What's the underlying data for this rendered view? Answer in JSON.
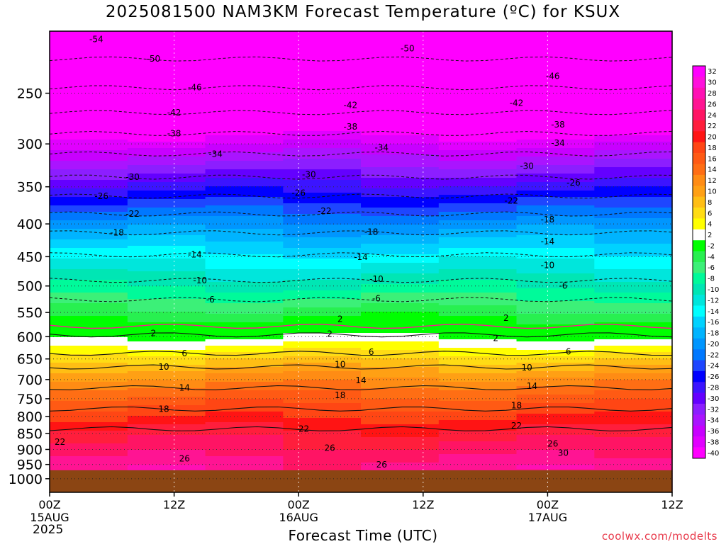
{
  "title": "2025081500 NAM3KM Forecast Temperature (ºC) for KSUX",
  "xlabel": "Forecast Time (UTC)",
  "watermark": "coolwx.com/modelts",
  "year": "2025",
  "chart_data": {
    "type": "heatmap",
    "title": "2025081500 NAM3KM Forecast Temperature (ºC) for KSUX",
    "xlabel": "Forecast Time (UTC)",
    "ylabel": "",
    "x_ticks": [
      {
        "label": "00Z",
        "sub": "15AUG",
        "hour": 0
      },
      {
        "label": "12Z",
        "sub": "",
        "hour": 12
      },
      {
        "label": "00Z",
        "sub": "16AUG",
        "hour": 24
      },
      {
        "label": "12Z",
        "sub": "",
        "hour": 36
      },
      {
        "label": "00Z",
        "sub": "17AUG",
        "hour": 48
      },
      {
        "label": "12Z",
        "sub": "",
        "hour": 60
      }
    ],
    "xlim": [
      0,
      60
    ],
    "y_ticks": [
      "250",
      "300",
      "350",
      "400",
      "450",
      "500",
      "550",
      "600",
      "650",
      "700",
      "750",
      "800",
      "850",
      "900",
      "950",
      "1000"
    ],
    "ylim_hpa": [
      1050,
      200
    ],
    "y_scale": "log",
    "surface_pressure_hpa": 970,
    "colorbar_levels": [
      32,
      30,
      28,
      26,
      24,
      22,
      20,
      18,
      16,
      14,
      12,
      10,
      8,
      6,
      4,
      2,
      -2,
      -4,
      -6,
      -8,
      -10,
      -12,
      -14,
      -16,
      -18,
      -20,
      -22,
      -24,
      -26,
      -28,
      -30,
      -32,
      -34,
      -36,
      -38,
      -40
    ],
    "colorbar_colors": [
      "#ff00ff",
      "#ff10dc",
      "#ff10b4",
      "#ff1493",
      "#ff1464",
      "#ff1e3c",
      "#ff1414",
      "#ff4614",
      "#ff5a14",
      "#ff6e14",
      "#ff8c14",
      "#ffa014",
      "#ffbe14",
      "#ffdc14",
      "#ffff00",
      "#ffffff",
      "#00ff00",
      "#28f050",
      "#3cf078",
      "#00fa9a",
      "#00e6b4",
      "#00e6dc",
      "#00ffff",
      "#00d2ff",
      "#00b4ff",
      "#0096ff",
      "#0078ff",
      "#1e46ff",
      "#0000ff",
      "#3c14ff",
      "#6400ff",
      "#8c1eff",
      "#aa14ff",
      "#c800ff",
      "#e100ff",
      "#ff00ff"
    ],
    "profile": [
      {
        "p": 200,
        "t": -58
      },
      {
        "p": 250,
        "t": -48
      },
      {
        "p": 300,
        "t": -36
      },
      {
        "p": 350,
        "t": -27
      },
      {
        "p": 400,
        "t": -19
      },
      {
        "p": 450,
        "t": -13
      },
      {
        "p": 500,
        "t": -8
      },
      {
        "p": 550,
        "t": -3
      },
      {
        "p": 600,
        "t": 2
      },
      {
        "p": 650,
        "t": 8
      },
      {
        "p": 700,
        "t": 13
      },
      {
        "p": 750,
        "t": 17
      },
      {
        "p": 800,
        "t": 20
      },
      {
        "p": 850,
        "t": 23
      },
      {
        "p": 900,
        "t": 25
      },
      {
        "p": 950,
        "t": 27
      }
    ],
    "contour_labels_negative": [
      {
        "v": "-54",
        "x": 4.5,
        "p": 206
      },
      {
        "v": "-50",
        "x": 10,
        "p": 221
      },
      {
        "v": "-46",
        "x": 14,
        "p": 245
      },
      {
        "v": "-42",
        "x": 12,
        "p": 268
      },
      {
        "v": "-38",
        "x": 12,
        "p": 289
      },
      {
        "v": "-34",
        "x": 16,
        "p": 311
      },
      {
        "v": "-30",
        "x": 8,
        "p": 338
      },
      {
        "v": "-26",
        "x": 5,
        "p": 362
      },
      {
        "v": "-22",
        "x": 8,
        "p": 386
      },
      {
        "v": "-18",
        "x": 6.5,
        "p": 413
      },
      {
        "v": "-14",
        "x": 14,
        "p": 447
      },
      {
        "v": "-10",
        "x": 14.5,
        "p": 490
      },
      {
        "v": "-6",
        "x": 15.5,
        "p": 525
      },
      {
        "v": "-50",
        "x": 34.5,
        "p": 213
      },
      {
        "v": "-42",
        "x": 29,
        "p": 261
      },
      {
        "v": "-38",
        "x": 29,
        "p": 282
      },
      {
        "v": "-34",
        "x": 32,
        "p": 304
      },
      {
        "v": "-30",
        "x": 25,
        "p": 335
      },
      {
        "v": "-26",
        "x": 24,
        "p": 358
      },
      {
        "v": "-22",
        "x": 26.5,
        "p": 382
      },
      {
        "v": "-18",
        "x": 31,
        "p": 412
      },
      {
        "v": "-14",
        "x": 30,
        "p": 451
      },
      {
        "v": "-10",
        "x": 31.5,
        "p": 488
      },
      {
        "v": "-6",
        "x": 31.5,
        "p": 523
      },
      {
        "v": "-46",
        "x": 48.5,
        "p": 235
      },
      {
        "v": "-42",
        "x": 45,
        "p": 259
      },
      {
        "v": "-38",
        "x": 49,
        "p": 280
      },
      {
        "v": "-34",
        "x": 49,
        "p": 299
      },
      {
        "v": "-30",
        "x": 46,
        "p": 325
      },
      {
        "v": "-26",
        "x": 50.5,
        "p": 345
      },
      {
        "v": "-22",
        "x": 44.5,
        "p": 368
      },
      {
        "v": "-18",
        "x": 48,
        "p": 394
      },
      {
        "v": "-14",
        "x": 48,
        "p": 426
      },
      {
        "v": "-10",
        "x": 48,
        "p": 464
      },
      {
        "v": "-6",
        "x": 49.5,
        "p": 500
      }
    ],
    "contour_labels_positive": [
      {
        "v": "2",
        "x": 10,
        "p": 593
      },
      {
        "v": "6",
        "x": 13,
        "p": 637
      },
      {
        "v": "10",
        "x": 11,
        "p": 669
      },
      {
        "v": "14",
        "x": 13,
        "p": 721
      },
      {
        "v": "18",
        "x": 11,
        "p": 778
      },
      {
        "v": "22",
        "x": 1,
        "p": 876
      },
      {
        "v": "26",
        "x": 13,
        "p": 930
      },
      {
        "v": "2",
        "x": 28,
        "p": 563
      },
      {
        "v": "2",
        "x": 27,
        "p": 594
      },
      {
        "v": "6",
        "x": 31,
        "p": 634
      },
      {
        "v": "10",
        "x": 28,
        "p": 663
      },
      {
        "v": "14",
        "x": 30,
        "p": 702
      },
      {
        "v": "18",
        "x": 28,
        "p": 741
      },
      {
        "v": "22",
        "x": 24.5,
        "p": 836
      },
      {
        "v": "26",
        "x": 27,
        "p": 896
      },
      {
        "v": "26",
        "x": 32,
        "p": 951
      },
      {
        "v": "2",
        "x": 44,
        "p": 561
      },
      {
        "v": "2",
        "x": 43,
        "p": 603
      },
      {
        "v": "6",
        "x": 50,
        "p": 633
      },
      {
        "v": "10",
        "x": 46,
        "p": 671
      },
      {
        "v": "14",
        "x": 46.5,
        "p": 717
      },
      {
        "v": "18",
        "x": 45,
        "p": 769
      },
      {
        "v": "22",
        "x": 45,
        "p": 826
      },
      {
        "v": "26",
        "x": 48.5,
        "p": 882
      },
      {
        "v": "30",
        "x": 49.5,
        "p": 912
      }
    ]
  }
}
